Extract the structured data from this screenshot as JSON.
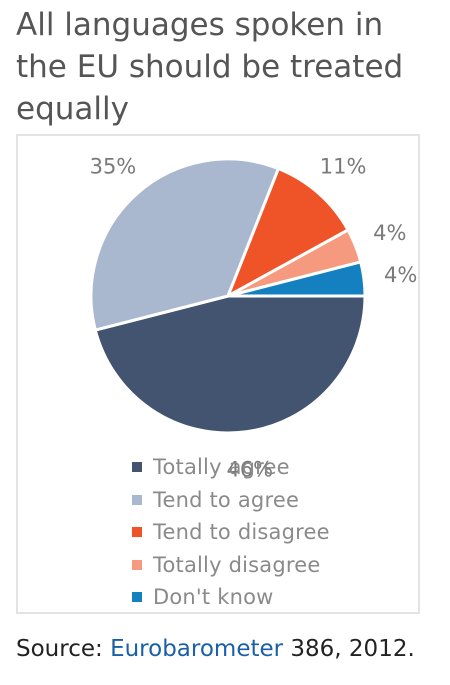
{
  "title": "All languages spoken in the EU should be treated equally",
  "chart_data": {
    "type": "pie",
    "categories": [
      "Totally agree",
      "Tend to agree",
      "Tend to disagree",
      "Totally disagree",
      "Don't know"
    ],
    "values": [
      46,
      35,
      11,
      4,
      4
    ],
    "labels": [
      "46%",
      "35%",
      "11%",
      "4%",
      "4%"
    ],
    "colors": [
      "#435470",
      "#a9b7cf",
      "#ee5427",
      "#f59a7f",
      "#1480c0"
    ],
    "legend_position": "bottom"
  },
  "source": {
    "prefix": "Source: ",
    "link_text": "Eurobarometer",
    "suffix": " 386, 2012."
  }
}
